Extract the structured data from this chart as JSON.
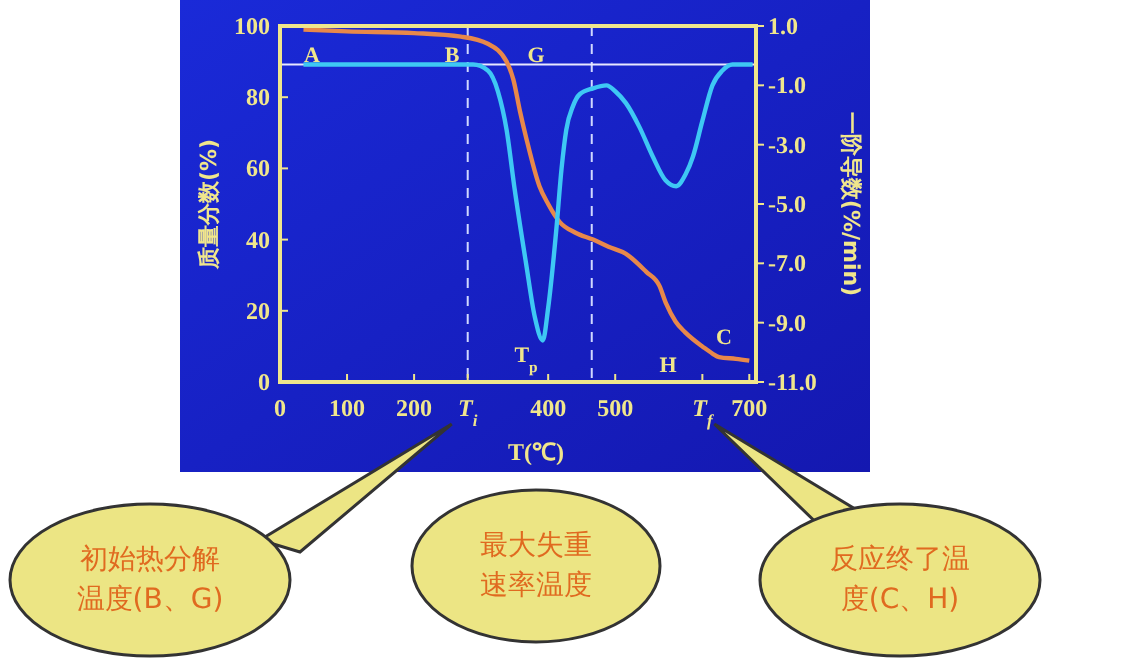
{
  "chart_data": {
    "type": "line",
    "xlabel": "T(℃)",
    "ylabel": "质量分数(%)",
    "y2label": "一阶导数(%/min)",
    "xlim": [
      0,
      710
    ],
    "xticks": [
      0,
      100,
      200,
      {
        "value": 280,
        "label": "T$_{i}$"
      },
      400,
      500,
      {
        "value": 630,
        "label": "T$_{f}$"
      },
      700
    ],
    "ylim": [
      0,
      100
    ],
    "yticks": [
      0,
      20,
      40,
      60,
      80,
      100
    ],
    "y2lim": [
      -11,
      1
    ],
    "y2ticks": [
      {
        "value": 1,
        "label": "1.0"
      },
      {
        "value": -1,
        "label": "-1.0"
      },
      {
        "value": -3,
        "label": "-3.0"
      },
      {
        "value": -5,
        "label": "-5.0"
      },
      {
        "value": -7,
        "label": "-7.0"
      },
      {
        "value": -9,
        "label": "-9.0"
      },
      {
        "value": -11,
        "label": "-11.0"
      }
    ],
    "series": [
      {
        "color": "#e8884a",
        "x": [
          35,
          100,
          200,
          270,
          310,
          338,
          348,
          358,
          368,
          387,
          400,
          417,
          440,
          467,
          490,
          516,
          546,
          566,
          576,
          590,
          604,
          616,
          630,
          645,
          655,
          680,
          700
        ],
        "values": [
          99,
          98.5,
          98,
          97,
          95,
          90,
          85,
          76,
          68,
          55,
          50,
          45,
          42,
          40,
          38,
          36,
          31,
          27,
          22,
          17,
          14,
          12,
          10,
          8,
          7,
          6.5,
          6
        ]
      },
      {
        "color": "#3ec8f4",
        "axis": "y2",
        "x": [
          35,
          100,
          200,
          288,
          310,
          325,
          338,
          350,
          367,
          380,
          392,
          400,
          412,
          420,
          427,
          437,
          447,
          467,
          487,
          500,
          516,
          536,
          556,
          575,
          591,
          605,
          616,
          630,
          645,
          660,
          675,
          705
        ],
        "values": [
          -0.3,
          -0.3,
          -0.3,
          -0.3,
          -0.5,
          -1.2,
          -2.5,
          -4.5,
          -7,
          -8.8,
          -9.6,
          -8.5,
          -5.9,
          -3.8,
          -2.5,
          -1.7,
          -1.3,
          -1.1,
          -1.0,
          -1.2,
          -1.6,
          -2.4,
          -3.4,
          -4.2,
          -4.4,
          -4.0,
          -3.4,
          -2.2,
          -1.0,
          -0.5,
          -0.3,
          -0.3
        ]
      }
    ],
    "ref_lines": [
      {
        "axis": "x",
        "value": 280,
        "color": "#d0d8ff",
        "line_style": "dashed"
      },
      {
        "axis": "x",
        "value": 465,
        "color": "#d0d8ff",
        "line_style": "dashed"
      },
      {
        "axis": "y2",
        "value": -0.3,
        "color": "#e8e8ff",
        "line_style": "solid"
      }
    ],
    "annotations": [
      "A",
      "B",
      "G",
      "C",
      "H",
      "T$_{p}$",
      "初始热分解温度(B、G)",
      "最大失重速率温度",
      "反应终了温度(C、H)"
    ]
  }
}
